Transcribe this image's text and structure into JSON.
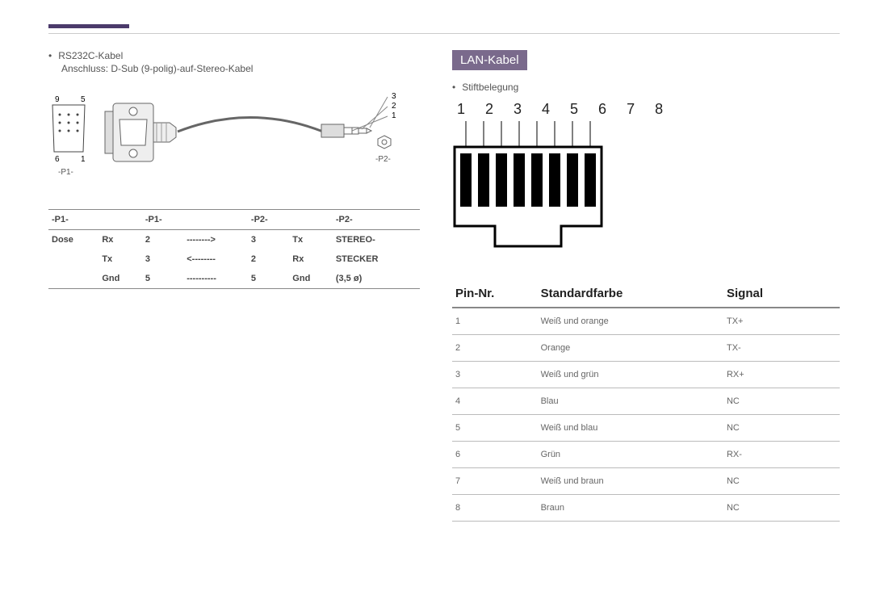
{
  "left": {
    "bullet": "RS232C-Kabel",
    "sub": "Anschluss: D-Sub (9-polig)-auf-Stereo-Kabel",
    "diagram": {
      "p1_label": "-P1-",
      "p2_label": "-P2-",
      "pin_labels": {
        "tl": "9",
        "tr": "5",
        "bl": "6",
        "br": "1"
      },
      "jack_labels": [
        "3",
        "2",
        "1"
      ]
    },
    "table": {
      "headers": [
        "-P1-",
        "",
        "-P1-",
        "",
        "-P2-",
        "",
        "-P2-"
      ],
      "rows": [
        [
          "Dose",
          "Rx",
          "2",
          "-------->",
          "3",
          "Tx",
          "STEREO-"
        ],
        [
          "",
          "Tx",
          "3",
          "<--------",
          "2",
          "Rx",
          "STECKER"
        ],
        [
          "",
          "Gnd",
          "5",
          "----------",
          "5",
          "Gnd",
          "(3,5 ø)"
        ]
      ]
    }
  },
  "right": {
    "section_title": "LAN-Kabel",
    "bullet": "Stiftbelegung",
    "pins": "1 2 3 4 5 6 7 8",
    "rj45_style": {
      "body_color": "#ffffff",
      "stroke": "#000000",
      "pin_fill": "#000000"
    },
    "table": {
      "headers": [
        "Pin-Nr.",
        "Standardfarbe",
        "Signal"
      ],
      "rows": [
        [
          "1",
          "Weiß und orange",
          "TX+"
        ],
        [
          "2",
          "Orange",
          "TX-"
        ],
        [
          "3",
          "Weiß und grün",
          "RX+"
        ],
        [
          "4",
          "Blau",
          "NC"
        ],
        [
          "5",
          "Weiß und blau",
          "NC"
        ],
        [
          "6",
          "Grün",
          "RX-"
        ],
        [
          "7",
          "Weiß und braun",
          "NC"
        ],
        [
          "8",
          "Braun",
          "NC"
        ]
      ]
    }
  },
  "colors": {
    "accent": "#4b3a6b",
    "section_bg": "#7a6a8c"
  }
}
